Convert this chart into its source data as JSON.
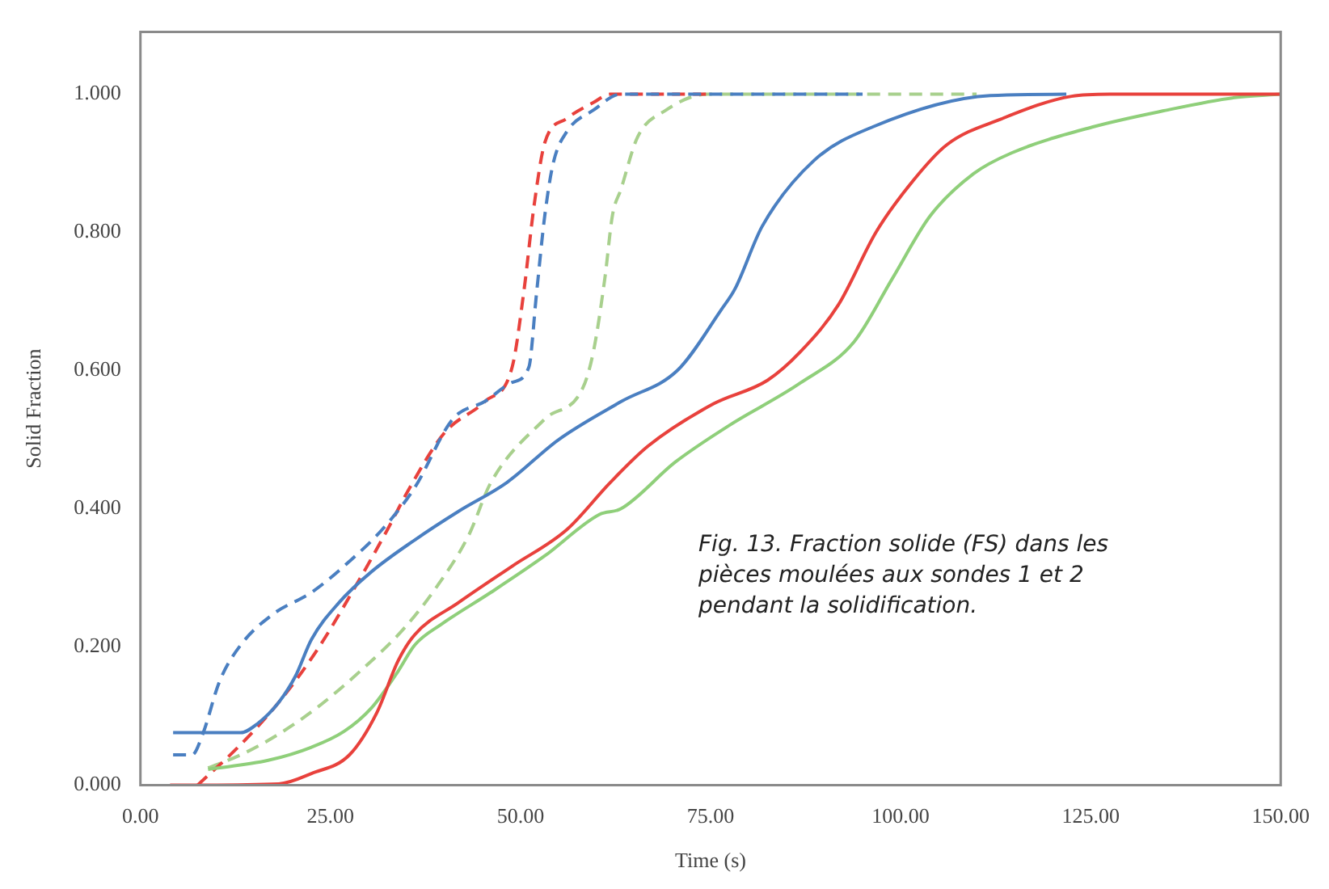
{
  "chart_data": {
    "type": "line",
    "xlabel": "Time (s)",
    "ylabel": "Solid Fraction",
    "xlim": [
      0,
      150
    ],
    "ylim": [
      0,
      1.09
    ],
    "xticks": [
      {
        "value": 0,
        "label": "0.00"
      },
      {
        "value": 25,
        "label": "25.00"
      },
      {
        "value": 50,
        "label": "50.00"
      },
      {
        "value": 75,
        "label": "75.00"
      },
      {
        "value": 100,
        "label": "100.00"
      },
      {
        "value": 125,
        "label": "125.00"
      },
      {
        "value": 150,
        "label": "150.00"
      }
    ],
    "yticks": [
      {
        "value": 0,
        "label": "0.000"
      },
      {
        "value": 0.2,
        "label": "0.200"
      },
      {
        "value": 0.4,
        "label": "0.400"
      },
      {
        "value": 0.6,
        "label": "0.600"
      },
      {
        "value": 0.8,
        "label": "0.800"
      },
      {
        "value": 1,
        "label": "1.000"
      }
    ],
    "grid": false,
    "legend": false,
    "marker": "none",
    "annotations": [
      "Fig. 13. Fraction solide (FS) dans les pièces moulées aux sondes 1 et 2 pendant la solidification."
    ],
    "series": [
      {
        "color": "#4a7fc1",
        "line_style": "solid",
        "x": [
          4.3,
          13.2,
          15.4,
          18.2,
          20.4,
          22.5,
          26.1,
          30.4,
          36.1,
          41.8,
          48.2,
          55,
          63.2,
          70.7,
          76.4,
          78.2,
          81.8,
          88.6,
          96.4,
          111.8,
          121.8
        ],
        "values": [
          0.076,
          0.076,
          0.089,
          0.12,
          0.158,
          0.211,
          0.264,
          0.309,
          0.355,
          0.396,
          0.438,
          0.5,
          0.555,
          0.601,
          0.688,
          0.718,
          0.809,
          0.904,
          0.953,
          0.998,
          1.0
        ]
      },
      {
        "color": "#e8413c",
        "line_style": "solid",
        "x": [
          3.9,
          18.2,
          22.5,
          27.5,
          31.1,
          33.9,
          36.1,
          41.8,
          48.9,
          56.1,
          61.8,
          66.8,
          75.4,
          82.5,
          86.8,
          91.8,
          96.8,
          101.8,
          106.1,
          113.2,
          122.5,
          127.5,
          150
        ],
        "values": [
          0,
          0.002,
          0.017,
          0.044,
          0.105,
          0.18,
          0.218,
          0.264,
          0.317,
          0.37,
          0.438,
          0.491,
          0.552,
          0.586,
          0.627,
          0.695,
          0.801,
          0.877,
          0.927,
          0.964,
          0.997,
          1.0,
          1.0
        ]
      },
      {
        "color": "#8fcf7a",
        "line_style": "solid",
        "x": [
          8.9,
          16.8,
          22.5,
          26.8,
          30.4,
          33.9,
          36.1,
          39.6,
          46.1,
          53.2,
          60.4,
          63.2,
          70.4,
          77.5,
          86.8,
          93.9,
          98.9,
          103.9,
          109.6,
          114.6,
          125.4,
          134.6,
          143.9,
          150
        ],
        "values": [
          0.023,
          0.036,
          0.055,
          0.078,
          0.112,
          0.165,
          0.203,
          0.233,
          0.279,
          0.332,
          0.392,
          0.4,
          0.468,
          0.521,
          0.582,
          0.642,
          0.733,
          0.824,
          0.885,
          0.915,
          0.953,
          0.976,
          0.995,
          1.0
        ]
      },
      {
        "color": "#4a7fc1",
        "line_style": "dashed",
        "x": [
          4.3,
          6.8,
          8.2,
          10.4,
          13.2,
          17.5,
          22.5,
          27.5,
          31.8,
          36.1,
          41.1,
          45.4,
          48.9,
          51.1,
          52.1,
          53.2,
          54.3,
          56.1,
          59.6,
          63.2,
          95
        ],
        "values": [
          0.044,
          0.044,
          0.074,
          0.15,
          0.203,
          0.248,
          0.279,
          0.324,
          0.37,
          0.431,
          0.53,
          0.556,
          0.583,
          0.605,
          0.711,
          0.825,
          0.9,
          0.946,
          0.977,
          1.0,
          1.0
        ]
      },
      {
        "color": "#e8413c",
        "line_style": "dashed",
        "x": [
          7.5,
          13.2,
          18.2,
          23.2,
          28.2,
          32.5,
          35.4,
          40,
          45.4,
          48.9,
          50.4,
          51.8,
          53.2,
          56.1,
          59.6,
          61.8,
          75
        ],
        "values": [
          0,
          0.059,
          0.12,
          0.195,
          0.286,
          0.37,
          0.43,
          0.51,
          0.556,
          0.605,
          0.711,
          0.84,
          0.93,
          0.965,
          0.988,
          1.0,
          1.0
        ]
      },
      {
        "color": "#a8d08d",
        "line_style": "dashed",
        "x": [
          8.9,
          13.2,
          18.2,
          23.2,
          28.9,
          34.6,
          38.9,
          43.2,
          46.1,
          53.2,
          58.2,
          59.6,
          61.1,
          62.1,
          63.2,
          65.4,
          69,
          74.6,
          110
        ],
        "values": [
          0.025,
          0.044,
          0.074,
          0.112,
          0.165,
          0.226,
          0.286,
          0.362,
          0.438,
          0.53,
          0.575,
          0.628,
          0.734,
          0.825,
          0.862,
          0.938,
          0.976,
          1.0,
          1.0
        ]
      }
    ]
  }
}
